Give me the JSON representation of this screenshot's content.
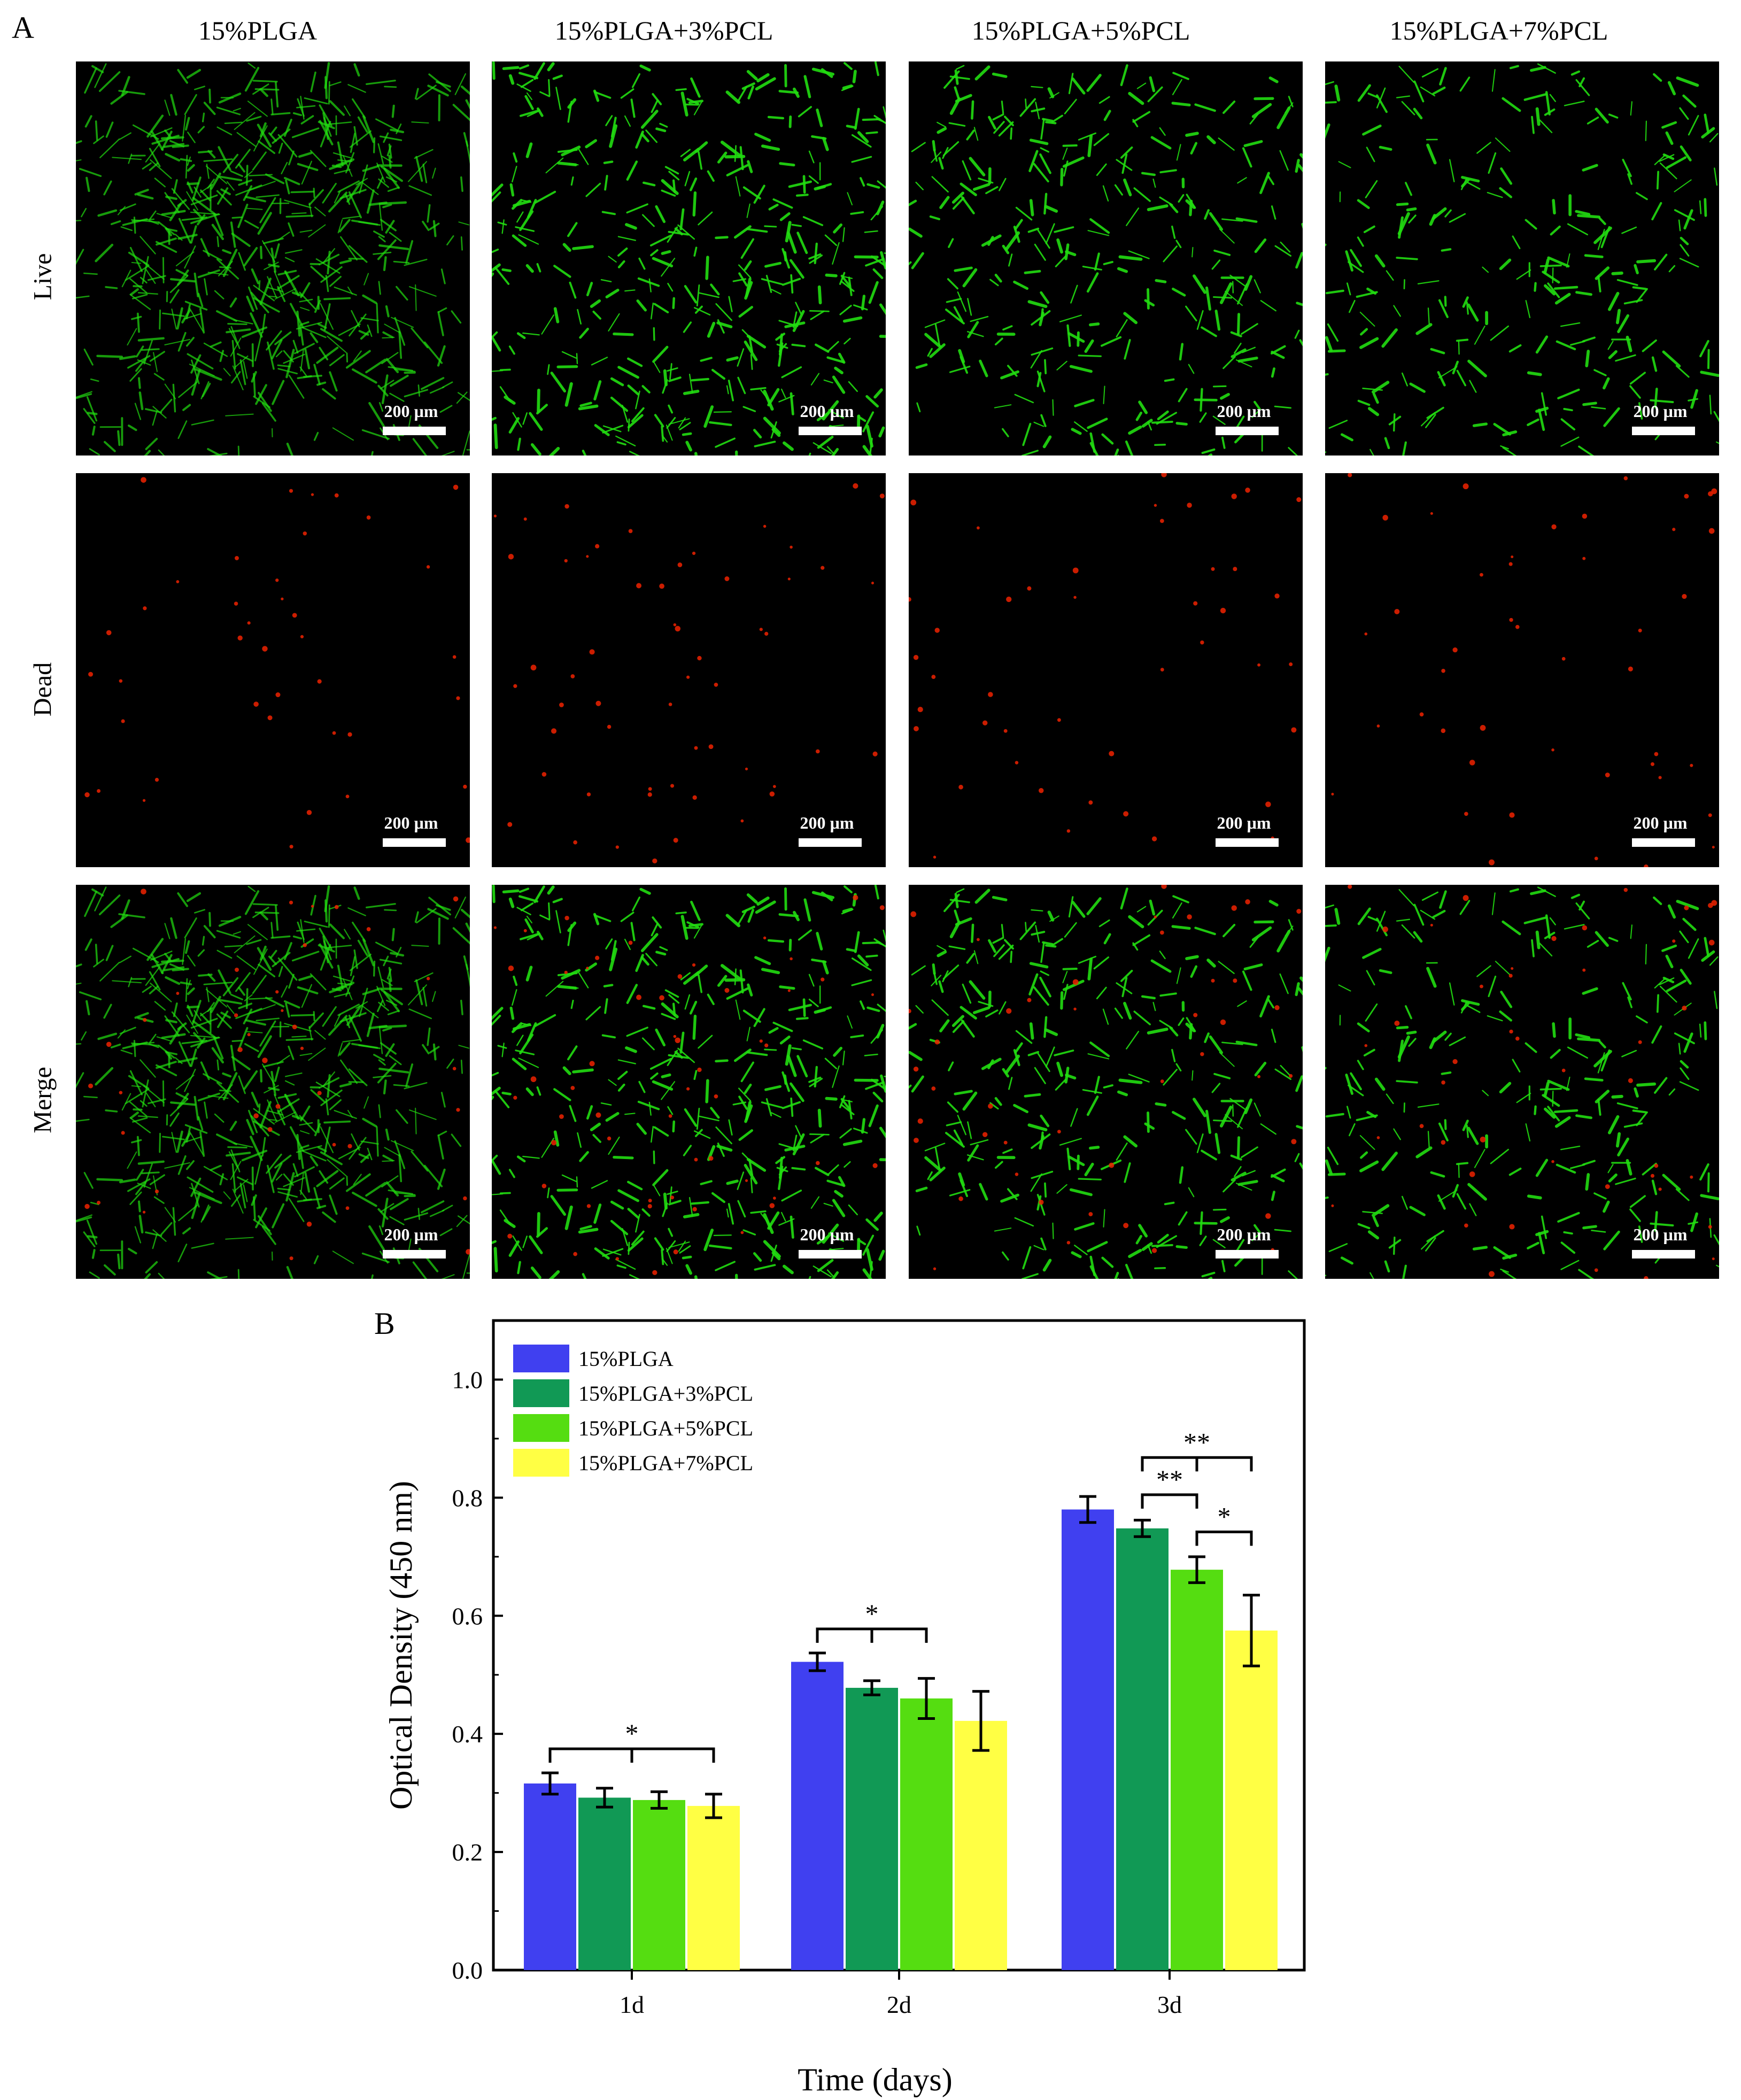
{
  "panel_labels": {
    "a": "A",
    "b": "B"
  },
  "columns": [
    "15%PLGA",
    "15%PLGA+3%PCL",
    "15%PLGA+5%PCL",
    "15%PLGA+7%PCL"
  ],
  "rows": [
    "Live",
    "Dead",
    "Merge"
  ],
  "scale_bar_label": "200 µm",
  "colors": {
    "live": "#22dd11",
    "dead": "#ee2200"
  },
  "chart_data": {
    "type": "bar",
    "categories": [
      "1d",
      "2d",
      "3d"
    ],
    "xlabel": "Time (days)",
    "ylabel": "Optical Density (450 nm)",
    "ylim": [
      0,
      1.1
    ],
    "yticks": [
      0.0,
      0.2,
      0.4,
      0.6,
      0.8,
      1.0
    ],
    "ytick_labels": [
      "0.0",
      "0.2",
      "0.4",
      "0.6",
      "0.8",
      "1.0"
    ],
    "legend_position": "top-left",
    "series": [
      {
        "name": "15%PLGA",
        "color": "#4040f0",
        "values": [
          0.316,
          0.522,
          0.78
        ],
        "errors": [
          0.018,
          0.015,
          0.022
        ]
      },
      {
        "name": "15%PLGA+3%PCL",
        "color": "#119955",
        "values": [
          0.292,
          0.478,
          0.748
        ],
        "errors": [
          0.016,
          0.012,
          0.014
        ]
      },
      {
        "name": "15%PLGA+5%PCL",
        "color": "#55dd11",
        "values": [
          0.288,
          0.46,
          0.678
        ],
        "errors": [
          0.014,
          0.034,
          0.022
        ]
      },
      {
        "name": "15%PLGA+7%PCL",
        "color": "#ffff44",
        "values": [
          0.278,
          0.422,
          0.575
        ],
        "errors": [
          0.02,
          0.05,
          0.06
        ]
      }
    ],
    "significance": [
      {
        "category": 0,
        "from": 0,
        "to": 3,
        "label": "*"
      },
      {
        "category": 1,
        "from": 0,
        "to": 2,
        "label": "*"
      },
      {
        "category": 2,
        "from": 1,
        "to": 3,
        "label": "**"
      },
      {
        "category": 2,
        "from": 1,
        "to": 2,
        "label": "**"
      },
      {
        "category": 2,
        "from": 2,
        "to": 3,
        "label": "*"
      }
    ]
  }
}
